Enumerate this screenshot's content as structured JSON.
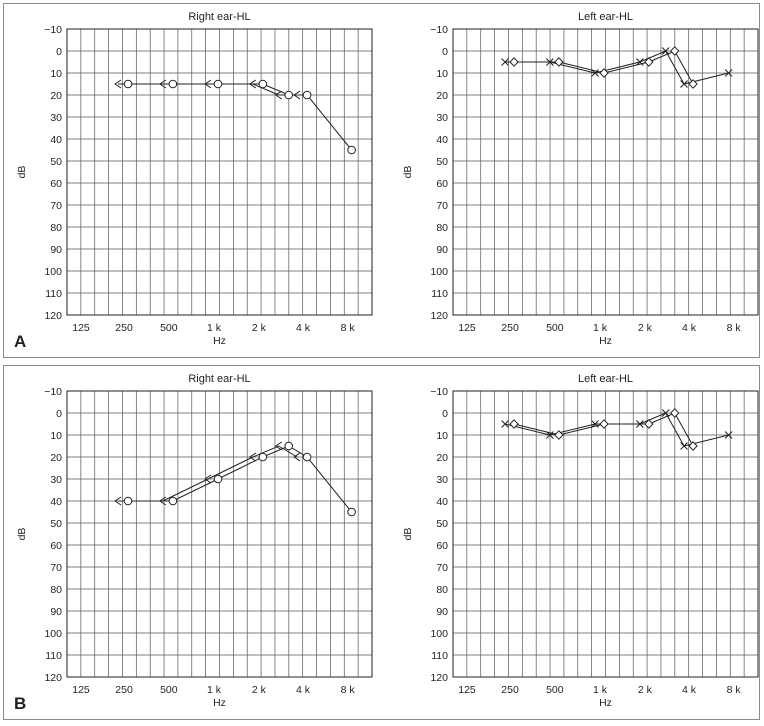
{
  "figure": {
    "panels": [
      {
        "letter": "A"
      },
      {
        "letter": "B"
      }
    ]
  },
  "chart_data": [
    {
      "panel": "A",
      "type": "line",
      "title": "Right ear-HL",
      "xlabel": "Hz",
      "ylabel": "dB",
      "x_ticks": [
        "125",
        "250",
        "500",
        "1 k",
        "2 k",
        "4 k",
        "8 k"
      ],
      "y_ticks": [
        "-10",
        "0",
        "10",
        "20",
        "30",
        "40",
        "50",
        "60",
        "70",
        "80",
        "90",
        "100",
        "110",
        "120"
      ],
      "ylim": [
        -10,
        120
      ],
      "y_inverted": true,
      "grid": true,
      "series": [
        {
          "symbol": "circle",
          "points": [
            [
              250,
              15
            ],
            [
              500,
              15
            ],
            [
              1000,
              15
            ],
            [
              2000,
              15
            ],
            [
              3000,
              20
            ],
            [
              4000,
              20
            ],
            [
              8000,
              45
            ]
          ]
        },
        {
          "symbol": "bracket-left",
          "points": [
            [
              250,
              15
            ],
            [
              500,
              15
            ],
            [
              1000,
              15
            ],
            [
              2000,
              15
            ],
            [
              3000,
              20
            ],
            [
              4000,
              20
            ]
          ]
        }
      ]
    },
    {
      "panel": "A",
      "type": "line",
      "title": "Left ear-HL",
      "xlabel": "Hz",
      "ylabel": "dB",
      "x_ticks": [
        "125",
        "250",
        "500",
        "1 k",
        "2 k",
        "4 k",
        "8 k"
      ],
      "y_ticks": [
        "-10",
        "0",
        "10",
        "20",
        "30",
        "40",
        "50",
        "60",
        "70",
        "80",
        "90",
        "100",
        "110",
        "120"
      ],
      "ylim": [
        -10,
        120
      ],
      "y_inverted": true,
      "grid": true,
      "series": [
        {
          "symbol": "cross",
          "points": [
            [
              250,
              5
            ],
            [
              500,
              5
            ],
            [
              1000,
              10
            ],
            [
              2000,
              5
            ],
            [
              3000,
              0
            ],
            [
              4000,
              15
            ],
            [
              8000,
              10
            ]
          ]
        },
        {
          "symbol": "diamond",
          "points": [
            [
              250,
              5
            ],
            [
              500,
              5
            ],
            [
              1000,
              10
            ],
            [
              2000,
              5
            ],
            [
              3000,
              0
            ],
            [
              4000,
              15
            ]
          ]
        }
      ]
    },
    {
      "panel": "B",
      "type": "line",
      "title": "Right ear-HL",
      "xlabel": "Hz",
      "ylabel": "dB",
      "x_ticks": [
        "125",
        "250",
        "500",
        "1 k",
        "2 k",
        "4 k",
        "8 k"
      ],
      "y_ticks": [
        "-10",
        "0",
        "10",
        "20",
        "30",
        "40",
        "50",
        "60",
        "70",
        "80",
        "90",
        "100",
        "110",
        "120"
      ],
      "ylim": [
        -10,
        120
      ],
      "y_inverted": true,
      "grid": true,
      "series": [
        {
          "symbol": "circle",
          "points": [
            [
              250,
              40
            ],
            [
              500,
              40
            ],
            [
              1000,
              30
            ],
            [
              2000,
              20
            ],
            [
              3000,
              15
            ],
            [
              4000,
              20
            ],
            [
              8000,
              45
            ]
          ]
        },
        {
          "symbol": "bracket-left",
          "points": [
            [
              250,
              40
            ],
            [
              500,
              40
            ],
            [
              1000,
              30
            ],
            [
              2000,
              20
            ],
            [
              3000,
              15
            ],
            [
              4000,
              20
            ]
          ]
        }
      ]
    },
    {
      "panel": "B",
      "type": "line",
      "title": "Left ear-HL",
      "xlabel": "Hz",
      "ylabel": "dB",
      "x_ticks": [
        "125",
        "250",
        "500",
        "1 k",
        "2 k",
        "4 k",
        "8 k"
      ],
      "y_ticks": [
        "-10",
        "0",
        "10",
        "20",
        "30",
        "40",
        "50",
        "60",
        "70",
        "80",
        "90",
        "100",
        "110",
        "120"
      ],
      "ylim": [
        -10,
        120
      ],
      "y_inverted": true,
      "grid": true,
      "series": [
        {
          "symbol": "cross",
          "points": [
            [
              250,
              5
            ],
            [
              500,
              10
            ],
            [
              1000,
              5
            ],
            [
              2000,
              5
            ],
            [
              3000,
              0
            ],
            [
              4000,
              15
            ],
            [
              8000,
              10
            ]
          ]
        },
        {
          "symbol": "diamond",
          "points": [
            [
              250,
              5
            ],
            [
              500,
              10
            ],
            [
              1000,
              5
            ],
            [
              2000,
              5
            ],
            [
              3000,
              0
            ],
            [
              4000,
              15
            ]
          ]
        }
      ]
    }
  ]
}
